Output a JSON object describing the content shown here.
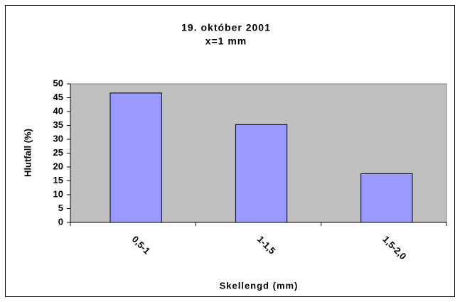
{
  "chart_data": {
    "type": "bar",
    "title": "19. október 2001",
    "subtitle": "x=1 mm",
    "x_label": "Skellengd (mm)",
    "y_label": "Hlutfall (%)",
    "categories": [
      "0,5-1",
      "1-1,5",
      "1,5-2,0"
    ],
    "values": [
      46.7,
      35.3,
      17.6
    ],
    "color": "#9999ff",
    "ylim": [
      0,
      50
    ],
    "yticks": [
      0,
      5,
      10,
      15,
      20,
      25,
      30,
      35,
      40,
      45,
      50
    ]
  }
}
